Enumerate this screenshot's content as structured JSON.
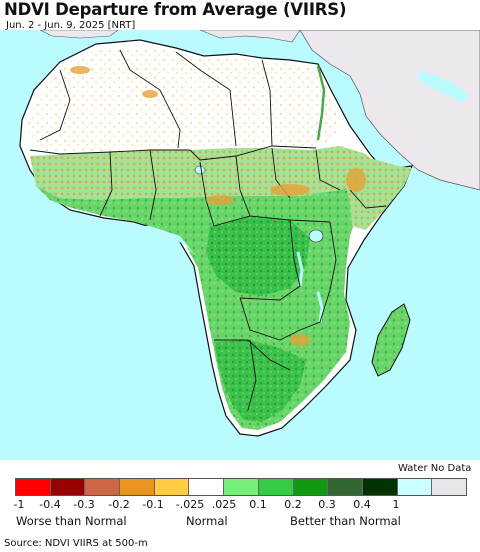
{
  "title": "NDVI Departure from Average (VIIRS)",
  "subtitle": "Jun. 2 - Jun. 9, 2025 [NRT]",
  "colors": {
    "ocean": "#b9fbff",
    "land_nodata": "#ffffff",
    "other_land": "#ece8ee",
    "veg_light": "#7ee07a",
    "veg_mid": "#33c24a",
    "veg_dark": "#119a22",
    "brown": "#e7a23a",
    "border": "#1a1a1a"
  },
  "legend": {
    "water_no_data": "Water No Data",
    "swatches": [
      {
        "color": "#ff0000"
      },
      {
        "color": "#990000"
      },
      {
        "color": "#cc6644"
      },
      {
        "color": "#e8951e"
      },
      {
        "color": "#ffcc44"
      },
      {
        "color": "#ffffff"
      },
      {
        "color": "#77ee77"
      },
      {
        "color": "#33cc44"
      },
      {
        "color": "#119911"
      },
      {
        "color": "#336633"
      },
      {
        "color": "#003300"
      },
      {
        "color": "#ccffff"
      },
      {
        "color": "#e8e4ea"
      }
    ],
    "ticks": [
      "-1",
      "-0.4",
      "-0.3",
      "-0.2",
      "-0.1",
      "-.025",
      ".025",
      "0.1",
      "0.2",
      "0.3",
      "0.4",
      "1"
    ],
    "captions": {
      "left": "Worse than Normal",
      "center": "Normal",
      "right": "Better than Normal"
    }
  },
  "footnote": "Source: NDVI VIIRS at 500-m"
}
